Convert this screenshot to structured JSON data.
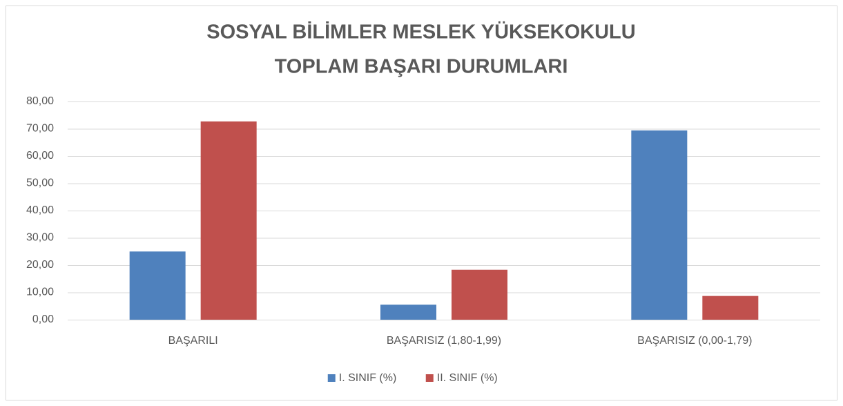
{
  "chart_data": {
    "type": "bar",
    "title": [
      "SOSYAL BİLİMLER MESLEK YÜKSEKOKULU",
      "TOPLAM BAŞARI DURUMLARI"
    ],
    "categories": [
      "BAŞARILI",
      "BAŞARISIZ (1,80-1,99)",
      "BAŞARISIZ (0,00-1,79)"
    ],
    "series": [
      {
        "name": "I. SINIF (%)",
        "color": "#4f81bd",
        "values": [
          25.0,
          5.5,
          69.4
        ]
      },
      {
        "name": "II. SINIF (%)",
        "color": "#c0504d",
        "values": [
          72.7,
          18.3,
          8.7
        ]
      }
    ],
    "ylim": [
      0,
      80
    ],
    "yticks": [
      {
        "value": 0,
        "label": "0,00"
      },
      {
        "value": 10,
        "label": "10,00"
      },
      {
        "value": 20,
        "label": "20,00"
      },
      {
        "value": 30,
        "label": "30,00"
      },
      {
        "value": 40,
        "label": "40,00"
      },
      {
        "value": 50,
        "label": "50,00"
      },
      {
        "value": 60,
        "label": "60,00"
      },
      {
        "value": 70,
        "label": "70,00"
      },
      {
        "value": 80,
        "label": "80,00"
      }
    ],
    "grid": true,
    "legend": "bottom"
  }
}
